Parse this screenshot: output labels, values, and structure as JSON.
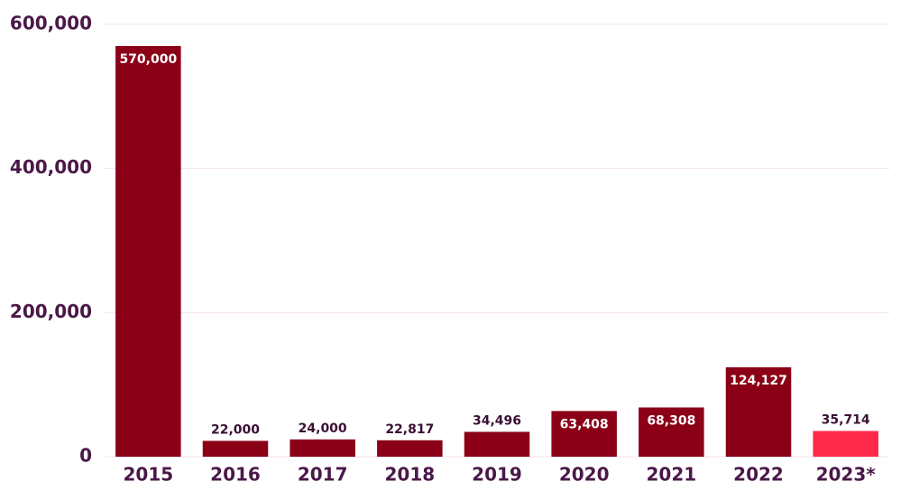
{
  "chart_data": {
    "type": "bar",
    "categories": [
      "2015",
      "2016",
      "2017",
      "2018",
      "2019",
      "2020",
      "2021",
      "2022",
      "2023*"
    ],
    "values": [
      570000,
      22000,
      24000,
      22817,
      34496,
      63408,
      68308,
      124127,
      35714
    ],
    "value_labels": [
      "570,000",
      "22,000",
      "24,000",
      "22,817",
      "34,496",
      "63,408",
      "68,308",
      "124,127",
      "35,714"
    ],
    "colors": [
      "#8b0016",
      "#8b0016",
      "#8b0016",
      "#8b0016",
      "#8b0016",
      "#8b0016",
      "#8b0016",
      "#8b0016",
      "#ff2a4a"
    ],
    "ylim": [
      0,
      600000
    ],
    "yticks": [
      0,
      {
        "value": 200000,
        "label": "200,000"
      },
      {
        "value": 400000,
        "label": "400,000"
      },
      {
        "value": 600000,
        "label": "600,000"
      }
    ],
    "grid": true
  }
}
